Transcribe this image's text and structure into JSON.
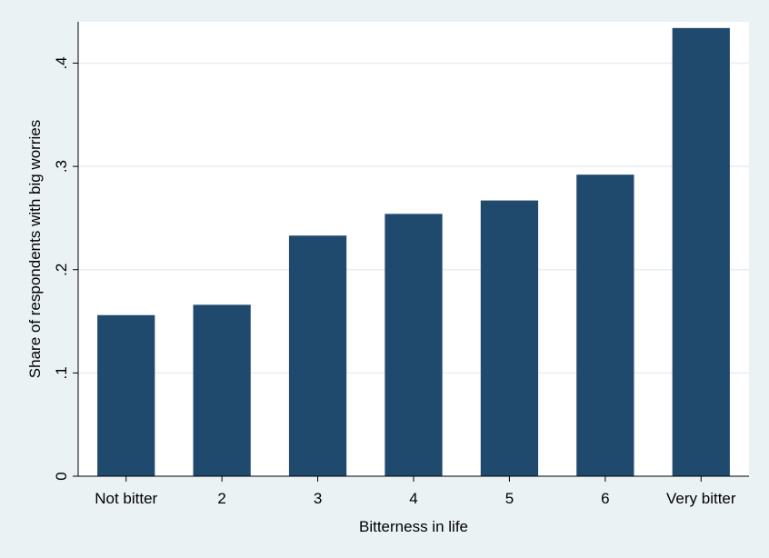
{
  "chart_data": {
    "type": "bar",
    "categories": [
      "Not bitter",
      "2",
      "3",
      "4",
      "5",
      "6",
      "Very bitter"
    ],
    "values": [
      0.156,
      0.166,
      0.233,
      0.254,
      0.267,
      0.292,
      0.434
    ],
    "xlabel": "Bitterness in life",
    "ylabel": "Share of respondents with big worries",
    "ylim": [
      0,
      0.44
    ],
    "yticks": [
      0,
      0.1,
      0.2,
      0.3,
      0.4
    ],
    "ytick_labels": [
      "0",
      ".1",
      ".2",
      ".3",
      ".4"
    ],
    "grid": true,
    "bar_color": "#1f4a6e",
    "plot_background": "#ffffff",
    "background": "#eaf2f3"
  }
}
